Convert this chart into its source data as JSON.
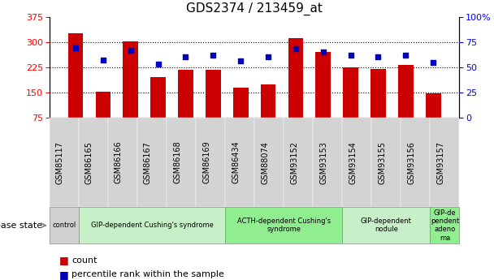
{
  "title": "GDS2374 / 213459_at",
  "samples": [
    "GSM85117",
    "GSM86165",
    "GSM86166",
    "GSM86167",
    "GSM86168",
    "GSM86169",
    "GSM86434",
    "GSM88074",
    "GSM93152",
    "GSM93153",
    "GSM93154",
    "GSM93155",
    "GSM93156",
    "GSM93157"
  ],
  "counts": [
    325,
    152,
    302,
    195,
    218,
    218,
    163,
    175,
    312,
    270,
    225,
    220,
    232,
    148
  ],
  "percentiles": [
    69,
    57,
    67,
    53,
    60,
    62,
    56,
    60,
    68,
    65,
    62,
    60,
    62,
    55
  ],
  "disease_groups": [
    {
      "label": "control",
      "start": 0,
      "end": 1,
      "color": "#d0d0d0"
    },
    {
      "label": "GIP-dependent Cushing's syndrome",
      "start": 1,
      "end": 6,
      "color": "#c8f0c8"
    },
    {
      "label": "ACTH-dependent Cushing's\nsyndrome",
      "start": 6,
      "end": 10,
      "color": "#90ee90"
    },
    {
      "label": "GIP-dependent\nnodule",
      "start": 10,
      "end": 13,
      "color": "#c8f0c8"
    },
    {
      "label": "GIP-de\npendent\nadeno\nma",
      "start": 13,
      "end": 14,
      "color": "#90ee90"
    }
  ],
  "bar_color": "#cc0000",
  "dot_color": "#0000bb",
  "left_ylim": [
    75,
    375
  ],
  "left_yticks": [
    75,
    150,
    225,
    300,
    375
  ],
  "right_ylim": [
    0,
    100
  ],
  "right_yticks": [
    0,
    25,
    50,
    75,
    100
  ],
  "right_yticklabels": [
    "0",
    "25",
    "50",
    "75",
    "100%"
  ],
  "grid_values": [
    150,
    225,
    300
  ],
  "bar_width": 0.55
}
